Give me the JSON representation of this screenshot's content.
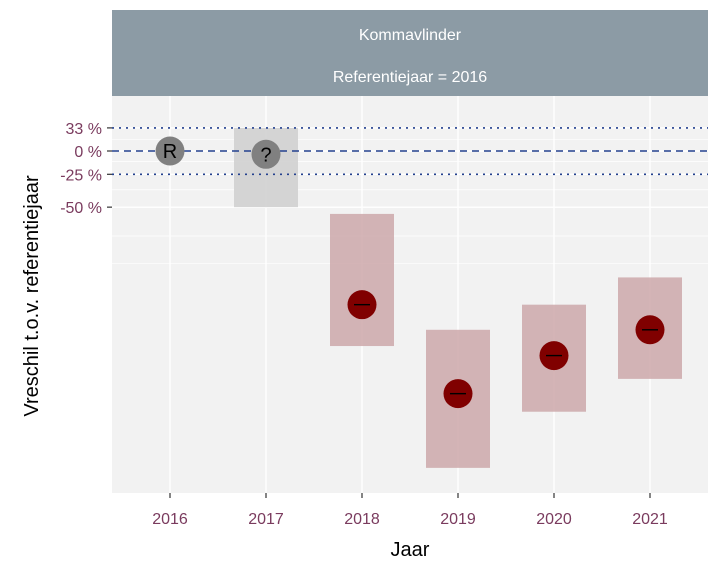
{
  "chart_data": {
    "type": "scatter",
    "facet_title": "Kommavlinder",
    "facet_subtitle": "Referentiejaar = 2016",
    "xlabel": "Jaar",
    "ylabel": "Vreschil t.o.v. referentiejaar",
    "categories": [
      "2016",
      "2017",
      "2018",
      "2019",
      "2020",
      "2021"
    ],
    "reference_lines": [
      {
        "label": "33 %",
        "style": "dotted",
        "color": "#23408e"
      },
      {
        "label": "0 %",
        "style": "dashed",
        "color": "#23408e"
      },
      {
        "label": "-25 %",
        "style": "dotted",
        "color": "#23408e"
      },
      {
        "label": "-50 %",
        "style": "none",
        "color": "#23408e"
      }
    ],
    "points": [
      {
        "year": "2016",
        "estimate": 0,
        "lcl": null,
        "ucl": null,
        "symbol": "R",
        "class": "reference",
        "color": "#808080"
      },
      {
        "year": "2017",
        "estimate": -4,
        "lcl": -50,
        "ucl": 33,
        "symbol": "?",
        "class": "unknown",
        "color": "#808080"
      },
      {
        "year": "2018",
        "estimate": -85,
        "lcl": -91,
        "ucl": -54,
        "symbol": "--",
        "class": "strong decrease",
        "color": "#800000"
      },
      {
        "year": "2019",
        "estimate": -95,
        "lcl": -98,
        "ucl": -89,
        "symbol": "--",
        "class": "strong decrease",
        "color": "#800000"
      },
      {
        "year": "2020",
        "estimate": -92,
        "lcl": -96,
        "ucl": -85,
        "symbol": "--",
        "class": "strong decrease",
        "color": "#800000"
      },
      {
        "year": "2021",
        "estimate": -89,
        "lcl": -94,
        "ucl": -79,
        "symbol": "--",
        "class": "strong decrease",
        "color": "#800000"
      }
    ],
    "colors": {
      "strip_bg": "#8c9ba5",
      "panel_bg": "#f2f2f2",
      "grid": "#ffffff",
      "tick_label": "#7a3b5e",
      "reference_line": "#23408e",
      "unknown_marker": "#808080",
      "decrease_marker": "#800000",
      "decrease_ci": "#cda8aa",
      "unknown_ci": "#d0d0d0"
    },
    "grid": true,
    "legend": "none"
  }
}
